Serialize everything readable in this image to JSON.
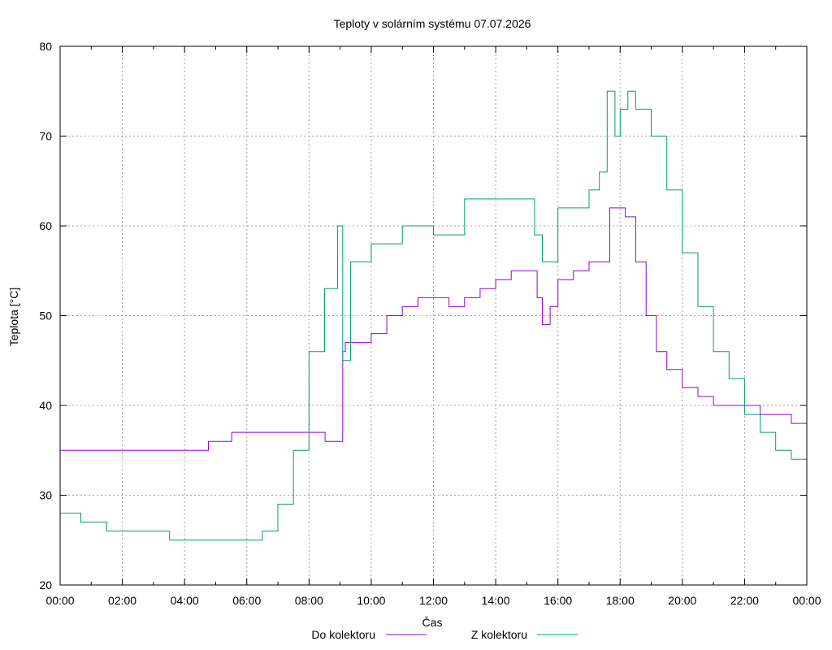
{
  "chart_data": {
    "type": "line",
    "title": "Teploty v solárním systému 07.07.2026",
    "xlabel": "Čas",
    "ylabel": "Teplota [°C]",
    "xlim": [
      "00:00",
      "24:00"
    ],
    "ylim": [
      20,
      80
    ],
    "x_ticks": [
      "00:00",
      "02:00",
      "04:00",
      "06:00",
      "08:00",
      "10:00",
      "12:00",
      "14:00",
      "16:00",
      "18:00",
      "20:00",
      "22:00",
      "00:00"
    ],
    "y_ticks": [
      20,
      30,
      40,
      50,
      60,
      70,
      80
    ],
    "grid": true,
    "legend_position": "bottom",
    "series": [
      {
        "name": "Do kolektoru",
        "color": "#9400d3",
        "x": [
          "00:00",
          "04:45",
          "04:46",
          "05:30",
          "05:31",
          "08:30",
          "08:31",
          "09:00",
          "09:05",
          "09:10",
          "09:40",
          "10:00",
          "10:30",
          "11:00",
          "11:30",
          "12:00",
          "12:30",
          "13:00",
          "13:30",
          "14:00",
          "14:30",
          "15:00",
          "15:20",
          "15:30",
          "15:45",
          "16:00",
          "16:30",
          "17:00",
          "17:30",
          "17:40",
          "17:50",
          "18:00",
          "18:10",
          "18:30",
          "18:50",
          "19:10",
          "19:30",
          "20:00",
          "20:30",
          "21:00",
          "21:30",
          "22:00",
          "22:30",
          "23:00",
          "23:30",
          "24:00"
        ],
        "y": [
          35,
          35,
          36,
          36,
          37,
          37,
          36,
          36,
          46,
          47,
          47,
          48,
          50,
          51,
          52,
          52,
          51,
          52,
          53,
          54,
          55,
          55,
          52,
          49,
          51,
          54,
          55,
          56,
          56,
          62,
          62,
          62,
          61,
          56,
          50,
          46,
          44,
          42,
          41,
          40,
          40,
          40,
          39,
          39,
          38,
          37
        ]
      },
      {
        "name": "Z kolektoru",
        "color": "#009e73",
        "x": [
          "00:00",
          "00:40",
          "01:00",
          "01:30",
          "03:30",
          "03:31",
          "06:10",
          "06:30",
          "07:00",
          "07:30",
          "08:00",
          "08:30",
          "08:55",
          "09:05",
          "09:20",
          "10:00",
          "11:00",
          "12:00",
          "13:00",
          "14:00",
          "15:00",
          "15:15",
          "15:30",
          "16:00",
          "17:00",
          "17:20",
          "17:35",
          "17:50",
          "18:00",
          "18:15",
          "18:30",
          "19:00",
          "19:30",
          "20:00",
          "20:30",
          "21:00",
          "21:30",
          "22:00",
          "22:30",
          "23:00",
          "23:30",
          "24:00"
        ],
        "y": [
          28,
          27,
          27,
          26,
          26,
          25,
          25,
          26,
          29,
          35,
          46,
          53,
          60,
          45,
          56,
          58,
          60,
          59,
          63,
          63,
          63,
          59,
          56,
          62,
          64,
          66,
          75,
          70,
          73,
          75,
          73,
          70,
          64,
          57,
          51,
          46,
          43,
          39,
          37,
          35,
          34,
          32
        ]
      }
    ]
  }
}
